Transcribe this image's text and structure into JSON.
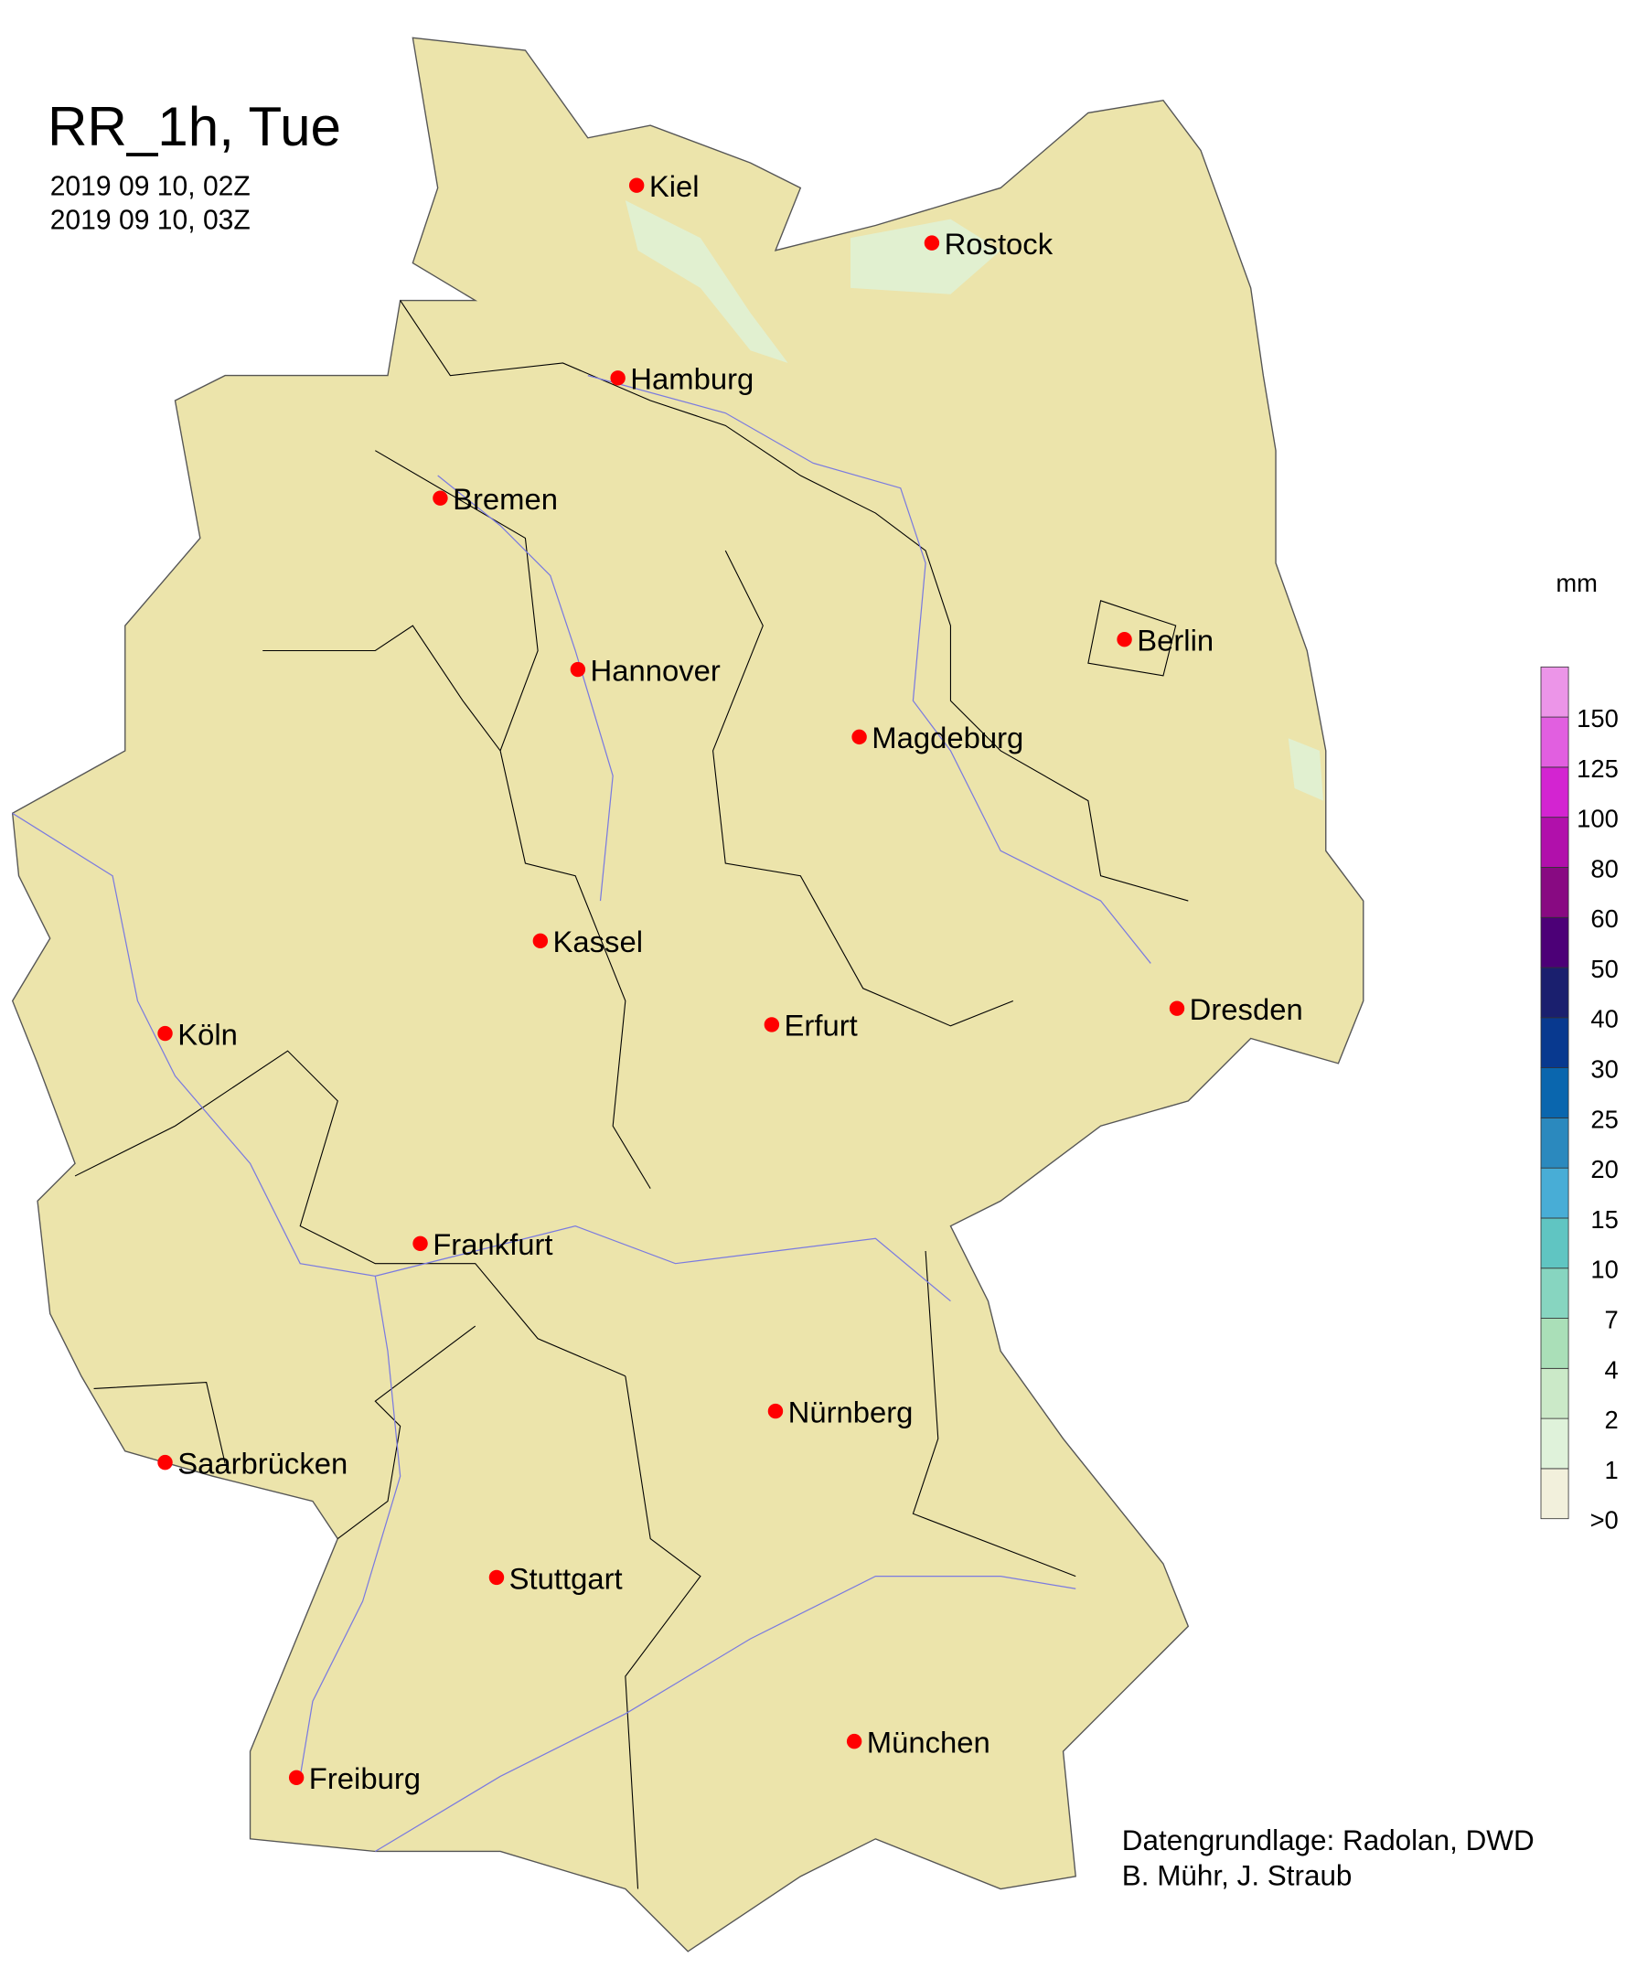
{
  "title": "RR_1h, Tue",
  "time_start": "2019 09 10, 02Z",
  "time_end": "2019 09 10, 03Z",
  "legend": {
    "unit": "mm",
    "labels": [
      ">0",
      "1",
      "2",
      "4",
      "7",
      "10",
      "15",
      "20",
      "25",
      "30",
      "40",
      "50",
      "60",
      "80",
      "100",
      "125",
      "150"
    ],
    "colors": [
      "#f2f0dc",
      "#dff2da",
      "#cbe9c8",
      "#aadfb8",
      "#87d5c0",
      "#60c5c2",
      "#48add6",
      "#2b89be",
      "#0a66ae",
      "#08398f",
      "#1a1f6e",
      "#4c0077",
      "#880a82",
      "#b110ab",
      "#d324d1",
      "#e15fe0",
      "#ec95e8"
    ]
  },
  "map": {
    "land_color": "#ece4ab",
    "border_color": "#000000",
    "river_color": "#7a7ae0",
    "city_marker_color": "#ff0000",
    "cities": [
      "Kiel",
      "Rostock",
      "Hamburg",
      "Bremen",
      "Berlin",
      "Hannover",
      "Magdeburg",
      "Kassel",
      "Köln",
      "Erfurt",
      "Dresden",
      "Frankfurt",
      "Nürnberg",
      "Saarbrücken",
      "Stuttgart",
      "München",
      "Freiburg"
    ]
  },
  "credits": {
    "line1": "Datengrundlage: Radolan, DWD",
    "line2": "B. Mühr, J. Straub"
  }
}
